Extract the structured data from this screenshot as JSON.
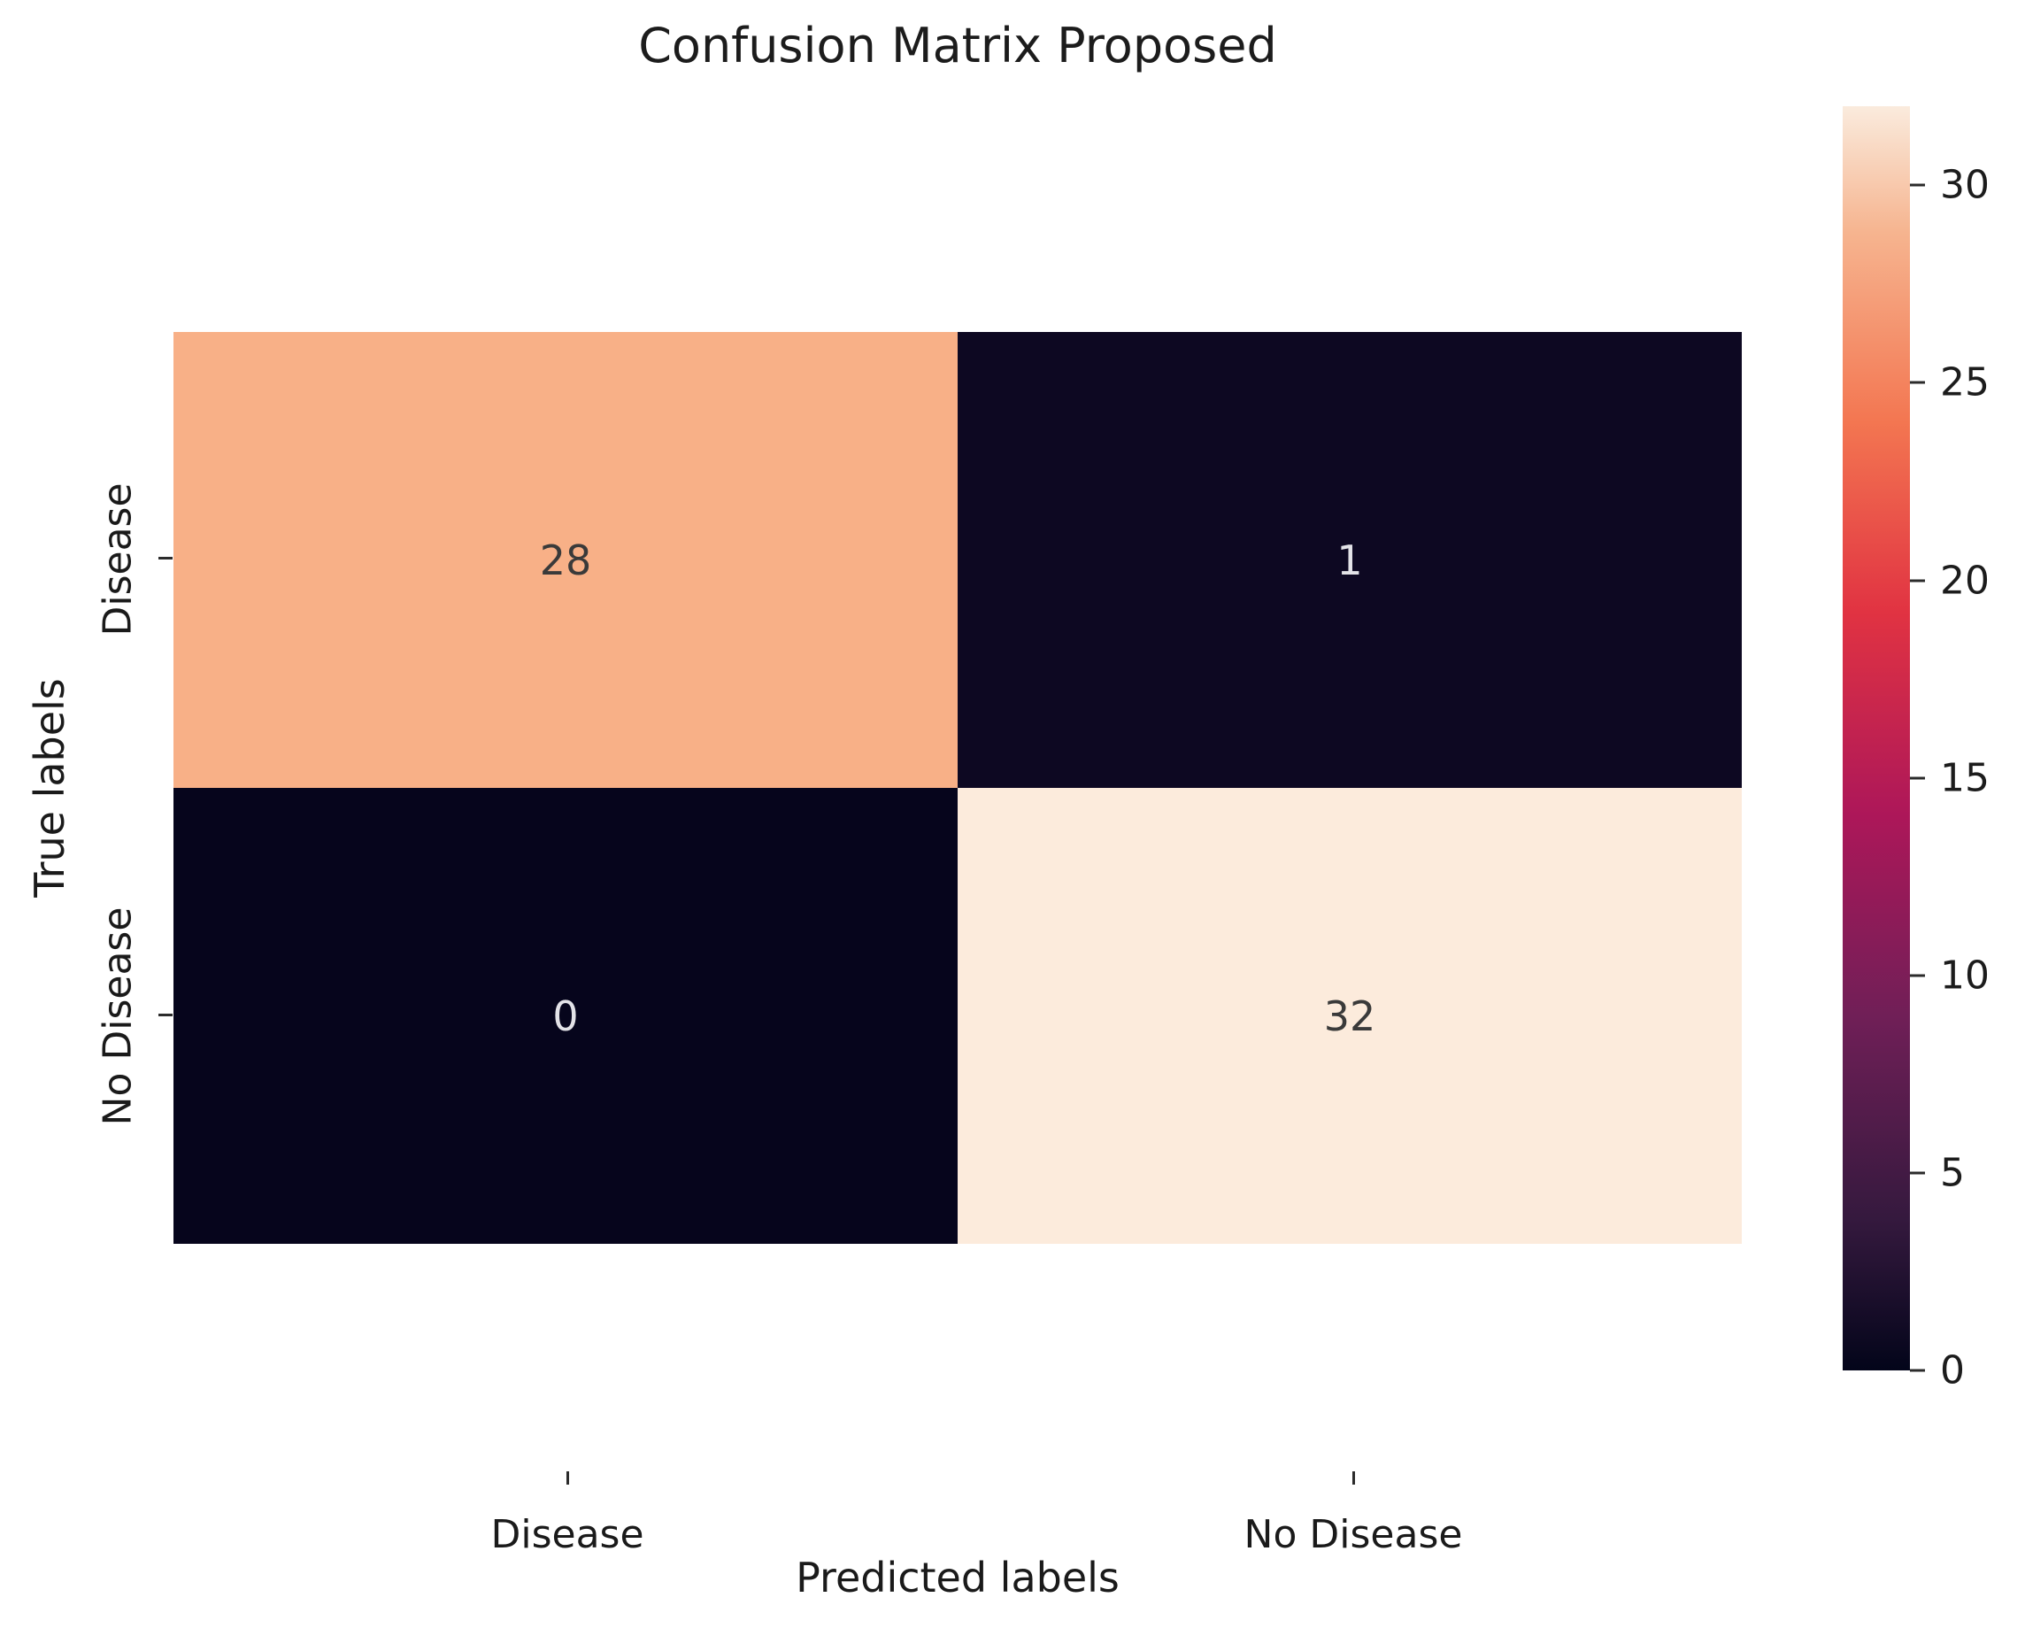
{
  "chart_data": {
    "type": "heatmap",
    "title": "Confusion Matrix Proposed",
    "xlabel": "Predicted labels",
    "ylabel": "True labels",
    "x_categories": [
      "Disease",
      "No Disease"
    ],
    "y_categories": [
      "Disease",
      "No Disease"
    ],
    "matrix": [
      [
        28,
        1
      ],
      [
        0,
        32
      ]
    ],
    "cells": [
      {
        "value": "28",
        "bg": "#f8b087",
        "fg": "#3a3a3a"
      },
      {
        "value": "1",
        "bg": "#0d0822",
        "fg": "#e3e3e8"
      },
      {
        "value": "0",
        "bg": "#06051c",
        "fg": "#e3e3e8"
      },
      {
        "value": "32",
        "bg": "#fcebdc",
        "fg": "#3a3a3a"
      }
    ],
    "colormap": "rocket",
    "grid": false,
    "legend_position": "right-colorbar",
    "colorbar": {
      "min": 0,
      "max": 32,
      "ticks": [
        0,
        5,
        10,
        15,
        20,
        25,
        30
      ],
      "gradient_stops": [
        {
          "pos": 0.0,
          "color": "#03051a"
        },
        {
          "pos": 0.12,
          "color": "#35193e"
        },
        {
          "pos": 0.28,
          "color": "#701f57"
        },
        {
          "pos": 0.44,
          "color": "#ad1759"
        },
        {
          "pos": 0.6,
          "color": "#e13342"
        },
        {
          "pos": 0.75,
          "color": "#f37651"
        },
        {
          "pos": 0.9,
          "color": "#f6b48f"
        },
        {
          "pos": 1.0,
          "color": "#faebdd"
        }
      ]
    }
  }
}
